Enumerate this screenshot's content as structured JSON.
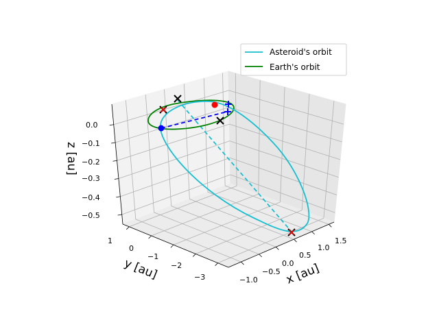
{
  "chart_data": {
    "type": "line",
    "projection": "3d",
    "title": "",
    "xlabel": "x [au]",
    "ylabel": "y [au]",
    "zlabel": "z [au]",
    "x_ticks": [
      "−1.0",
      "−0.5",
      "0.0",
      "0.5",
      "1.0",
      "1.5"
    ],
    "y_ticks": [
      "1",
      "0",
      "−1",
      "−2",
      "−3"
    ],
    "z_ticks": [
      "0.0",
      "−0.1",
      "−0.2",
      "−0.3",
      "−0.4",
      "−0.5"
    ],
    "xlim": [
      -1.1,
      1.7
    ],
    "ylim": [
      -3.5,
      1.2
    ],
    "zlim": [
      -0.55,
      0.05
    ],
    "grid": true,
    "legend": "top-right",
    "series": [
      {
        "name": "Asteroid's orbit",
        "color": "#17becf",
        "style": "solid"
      },
      {
        "name": "Earth's orbit",
        "color": "#008000",
        "style": "solid"
      }
    ],
    "markers": [
      {
        "symbol": "x",
        "color": "#000000"
      },
      {
        "symbol": "x",
        "color": "#000000"
      },
      {
        "symbol": "x",
        "color": "#000000"
      },
      {
        "symbol": "x",
        "color": "#000000"
      },
      {
        "symbol": "x",
        "color": "#ff0000"
      },
      {
        "symbol": "x",
        "color": "#ff0000"
      },
      {
        "symbol": "dot",
        "color": "#ff0000"
      },
      {
        "symbol": "dot",
        "color": "#0000ff"
      },
      {
        "symbol": "plus",
        "color": "#0000ff"
      },
      {
        "symbol": "plus",
        "color": "#0000ff"
      }
    ],
    "connectors": [
      {
        "color": "#0000ff",
        "style": "dashed"
      },
      {
        "color": "#17becf",
        "style": "dashed"
      }
    ]
  }
}
